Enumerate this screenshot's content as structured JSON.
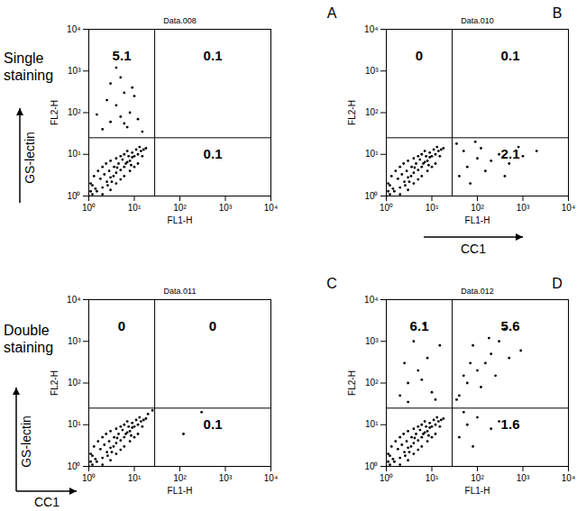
{
  "chart_data": [
    {
      "type": "scatter",
      "panel": "A",
      "title": "Data.008",
      "row_label": "Single staining",
      "outer_y_label": "GS-lectin",
      "x_label": "FL1-H",
      "y_label": "FL2-H",
      "log": true,
      "color": "#000000",
      "xlim": [
        1,
        10000
      ],
      "ylim": [
        1,
        10000
      ],
      "xticks": [
        {
          "value": 1,
          "label": "10⁰"
        },
        {
          "value": 10,
          "label": "10¹"
        },
        {
          "value": 100,
          "label": "10²"
        },
        {
          "value": 1000,
          "label": "10³"
        },
        {
          "value": 10000,
          "label": "10⁴"
        }
      ],
      "yticks": [
        {
          "value": 1,
          "label": "10⁰"
        },
        {
          "value": 10,
          "label": "10¹"
        },
        {
          "value": 100,
          "label": "10²"
        },
        {
          "value": 1000,
          "label": "10³"
        },
        {
          "value": 10000,
          "label": "10⁴"
        }
      ],
      "gates": {
        "x": 28,
        "y": 25
      },
      "quadrant_values": {
        "upper_left": 5.1,
        "upper_right": 0.1,
        "lower_right": 0.1
      },
      "x": [
        1.2,
        1.5,
        2,
        2.5,
        3,
        3.5,
        4,
        5,
        6,
        7,
        8,
        9,
        10,
        12,
        14,
        16,
        1.1,
        1.3,
        1.6,
        2,
        2.4,
        3,
        4,
        5,
        6,
        7,
        1.2,
        2,
        3,
        4,
        5,
        6,
        8,
        10,
        12,
        1.8,
        2.8,
        3.6,
        4.5,
        5.5,
        7.5,
        9,
        11,
        13,
        2.2,
        3.2,
        4.2,
        6.5,
        8.5,
        1.4,
        15,
        18,
        2.6,
        1,
        1.1,
        2,
        3,
        5,
        8,
        4,
        2.5,
        6,
        10,
        3,
        5,
        7,
        12,
        1.5,
        4,
        9,
        15,
        6
      ],
      "y": [
        1.1,
        1.3,
        1.6,
        2.2,
        2.8,
        3,
        3.6,
        4.2,
        5,
        6.5,
        7,
        8.5,
        9,
        10,
        12,
        13,
        2,
        3,
        4,
        5,
        6,
        7,
        8,
        9,
        10,
        12,
        1.8,
        1.1,
        1.4,
        2,
        2.5,
        3,
        4,
        5,
        6,
        2.6,
        4,
        5,
        6,
        7.5,
        9,
        11,
        13,
        15,
        3.3,
        2.2,
        4.8,
        6,
        5.5,
        1.5,
        9,
        14,
        1.8,
        1,
        1.3,
        40,
        60,
        80,
        100,
        150,
        200,
        300,
        250,
        500,
        700,
        45,
        70,
        90,
        1200,
        400,
        35,
        55
      ]
    },
    {
      "type": "scatter",
      "panel": "B",
      "title": "Data.010",
      "outer_x_label": "CC1",
      "x_label": "FL1-H",
      "y_label": "FL2-H",
      "log": true,
      "color": "#000000",
      "xlim": [
        1,
        10000
      ],
      "ylim": [
        1,
        10000
      ],
      "xticks": [
        {
          "value": 1,
          "label": "10⁰"
        },
        {
          "value": 10,
          "label": "10¹"
        },
        {
          "value": 100,
          "label": "10²"
        },
        {
          "value": 1000,
          "label": "10³"
        },
        {
          "value": 10000,
          "label": "10⁴"
        }
      ],
      "yticks": [
        {
          "value": 1,
          "label": "10⁰"
        },
        {
          "value": 10,
          "label": "10¹"
        },
        {
          "value": 100,
          "label": "10²"
        },
        {
          "value": 1000,
          "label": "10³"
        },
        {
          "value": 10000,
          "label": "10⁴"
        }
      ],
      "gates": {
        "x": 28,
        "y": 25
      },
      "quadrant_values": {
        "upper_left": 0,
        "upper_right": 0.1,
        "lower_right": 2.1
      },
      "x": [
        1.2,
        1.5,
        2,
        2.5,
        3,
        3.5,
        4,
        5,
        6,
        7,
        8,
        9,
        10,
        12,
        14,
        16,
        1.1,
        1.3,
        1.6,
        2,
        2.4,
        3,
        4,
        5,
        6,
        7,
        1.2,
        2,
        3,
        4,
        5,
        6,
        8,
        10,
        12,
        1.8,
        2.8,
        3.6,
        4.5,
        5.5,
        7.5,
        9,
        11,
        13,
        2.2,
        3.2,
        4.2,
        6.5,
        8.5,
        1.4,
        15,
        18,
        2.6,
        1,
        1.1,
        40,
        60,
        100,
        150,
        300,
        500,
        800,
        50,
        70,
        200,
        1000,
        35,
        120,
        400,
        2000,
        90
      ],
      "y": [
        1.1,
        1.3,
        1.6,
        2.2,
        2.8,
        3,
        3.6,
        4.2,
        5,
        6.5,
        7,
        8.5,
        9,
        10,
        12,
        13,
        2,
        3,
        4,
        5,
        6,
        7,
        8,
        9,
        10,
        12,
        1.8,
        1.1,
        1.4,
        2,
        2.5,
        3,
        4,
        5,
        6,
        2.6,
        4,
        5,
        6,
        7.5,
        9,
        11,
        13,
        15,
        3.3,
        2.2,
        4.8,
        6,
        5.5,
        1.5,
        9,
        14,
        1.8,
        1,
        1.3,
        3,
        5,
        8,
        4,
        10,
        6,
        15,
        12,
        2,
        7,
        9,
        18,
        14,
        3,
        12,
        20
      ]
    },
    {
      "type": "scatter",
      "panel": "C",
      "title": "Data.011",
      "row_label": "Double staining",
      "outer_y_label": "GS-lectin",
      "outer_x_label": "CC1",
      "x_label": "FL1-H",
      "y_label": "FL2-H",
      "log": true,
      "color": "#000000",
      "xlim": [
        1,
        10000
      ],
      "ylim": [
        1,
        10000
      ],
      "xticks": [
        {
          "value": 1,
          "label": "10⁰"
        },
        {
          "value": 10,
          "label": "10¹"
        },
        {
          "value": 100,
          "label": "10²"
        },
        {
          "value": 1000,
          "label": "10³"
        },
        {
          "value": 10000,
          "label": "10⁴"
        }
      ],
      "yticks": [
        {
          "value": 1,
          "label": "10⁰"
        },
        {
          "value": 10,
          "label": "10¹"
        },
        {
          "value": 100,
          "label": "10²"
        },
        {
          "value": 1000,
          "label": "10³"
        },
        {
          "value": 10000,
          "label": "10⁴"
        }
      ],
      "gates": {
        "x": 28,
        "y": 25
      },
      "quadrant_values": {
        "upper_left": 0,
        "upper_right": 0,
        "lower_right": 0.1
      },
      "x": [
        1.2,
        1.5,
        2,
        2.5,
        3,
        3.5,
        4,
        5,
        6,
        7,
        8,
        9,
        10,
        12,
        14,
        16,
        1.1,
        1.3,
        1.6,
        2,
        2.4,
        3,
        4,
        5,
        6,
        7,
        1.2,
        2,
        3,
        4,
        5,
        6,
        8,
        10,
        12,
        1.8,
        2.8,
        3.6,
        4.5,
        5.5,
        7.5,
        9,
        11,
        13,
        2.2,
        3.2,
        4.2,
        6.5,
        8.5,
        1.4,
        15,
        18,
        2.6,
        1,
        1.1,
        20,
        25,
        120,
        300
      ],
      "y": [
        1.1,
        1.3,
        1.6,
        2.2,
        2.8,
        3,
        3.6,
        4.2,
        5,
        6.5,
        7,
        8.5,
        9,
        10,
        12,
        13,
        2,
        3,
        4,
        5,
        6,
        7,
        8,
        9,
        10,
        12,
        1.8,
        1.1,
        1.4,
        2,
        2.5,
        3,
        4,
        5,
        6,
        2.6,
        4,
        5,
        6,
        7.5,
        9,
        11,
        13,
        15,
        3.3,
        2.2,
        4.8,
        6,
        5.5,
        1.5,
        9,
        14,
        1.8,
        1,
        1.3,
        18,
        22,
        6,
        20
      ]
    },
    {
      "type": "scatter",
      "panel": "D",
      "title": "Data.012",
      "x_label": "FL1-H",
      "y_label": "FL2-H",
      "log": true,
      "color": "#000000",
      "xlim": [
        1,
        10000
      ],
      "ylim": [
        1,
        10000
      ],
      "xticks": [
        {
          "value": 1,
          "label": "10⁰"
        },
        {
          "value": 10,
          "label": "10¹"
        },
        {
          "value": 100,
          "label": "10²"
        },
        {
          "value": 1000,
          "label": "10³"
        },
        {
          "value": 10000,
          "label": "10⁴"
        }
      ],
      "yticks": [
        {
          "value": 1,
          "label": "10⁰"
        },
        {
          "value": 10,
          "label": "10¹"
        },
        {
          "value": 100,
          "label": "10²"
        },
        {
          "value": 1000,
          "label": "10³"
        },
        {
          "value": 10000,
          "label": "10⁴"
        }
      ],
      "gates": {
        "x": 28,
        "y": 25
      },
      "quadrant_values": {
        "upper_left": 6.1,
        "upper_right": 5.6,
        "lower_right": 1.6
      },
      "x": [
        1.2,
        1.5,
        2,
        2.5,
        3,
        3.5,
        4,
        5,
        6,
        7,
        8,
        9,
        10,
        12,
        14,
        16,
        1.1,
        1.3,
        1.6,
        2,
        2.4,
        3,
        4,
        5,
        6,
        7,
        1.2,
        2,
        3,
        4,
        5,
        6,
        8,
        10,
        12,
        1.8,
        2.8,
        3.6,
        4.5,
        5.5,
        7.5,
        9,
        11,
        13,
        2.2,
        3.2,
        4.2,
        6.5,
        8.5,
        1.4,
        15,
        18,
        2.6,
        1,
        1.1,
        2,
        3,
        5,
        8,
        4,
        10,
        6,
        2.5,
        12,
        15,
        7,
        3,
        40,
        60,
        100,
        150,
        200,
        80,
        300,
        50,
        120,
        500,
        250,
        70,
        400,
        35,
        900,
        180,
        40,
        60,
        100,
        200,
        80,
        300,
        50
      ],
      "y": [
        1.1,
        1.3,
        1.6,
        2.2,
        2.8,
        3,
        3.6,
        4.2,
        5,
        6.5,
        7,
        8.5,
        9,
        10,
        12,
        13,
        2,
        3,
        4,
        5,
        6,
        7,
        8,
        9,
        10,
        12,
        1.8,
        1.1,
        1.4,
        2,
        2.5,
        3,
        4,
        5,
        6,
        2.6,
        4,
        5,
        6,
        7.5,
        9,
        11,
        13,
        15,
        3.3,
        2.2,
        4.8,
        6,
        5.5,
        1.5,
        9,
        14,
        1.8,
        1,
        1.3,
        50,
        100,
        200,
        400,
        1000,
        60,
        120,
        300,
        40,
        800,
        2500,
        35,
        50,
        100,
        200,
        300,
        500,
        800,
        1000,
        150,
        80,
        400,
        150,
        300,
        2000,
        40,
        600,
        1200,
        5,
        10,
        15,
        8,
        3,
        12,
        20
      ]
    }
  ]
}
